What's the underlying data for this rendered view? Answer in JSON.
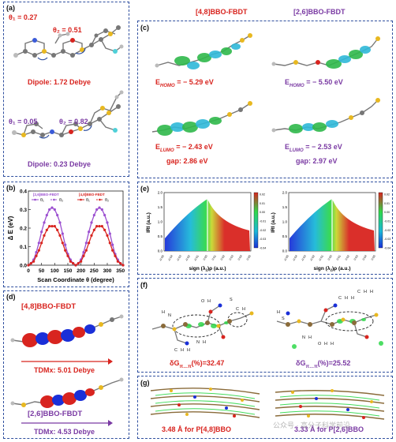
{
  "panel_a": {
    "label": "(a)",
    "top": {
      "theta1": "θ₁ = 0.27",
      "theta2": "θ₂ = 0.51",
      "dipole": "Dipole: 1.72 Debye"
    },
    "bottom": {
      "theta1": "θ₁ = 0.05",
      "theta2": "θ₂ = 0.82",
      "dipole": "Dipole: 0.23 Debye"
    }
  },
  "header": {
    "left": "[4,8]BBO-FBDT",
    "right": "[2,6]BBO-FBDT"
  },
  "panel_c": {
    "label": "(c)",
    "homo_left": "E",
    "homo_left_sub": "HOMO",
    "homo_left_val": "= − 5.29 eV",
    "homo_right": "E",
    "homo_right_sub": "HOMO",
    "homo_right_val": "= − 5.50 eV",
    "lumo_left": "E",
    "lumo_left_sub": "LUMO",
    "lumo_left_val": "= − 2.43 eV",
    "lumo_right": "E",
    "lumo_right_sub": "LUMO",
    "lumo_right_val": "= − 2.53 eV",
    "gap_left": "gap: 2.86 eV",
    "gap_right": "gap: 2.97 eV"
  },
  "panel_b": {
    "label": "(b)"
  },
  "chart_data": {
    "type": "line",
    "xlabel": "Scan Coordinate θ (degree)",
    "ylabel": "Δ E (eV)",
    "xlim": [
      0,
      360
    ],
    "ylim": [
      0.0,
      0.4
    ],
    "xticks": [
      "0",
      "50",
      "100",
      "150",
      "200",
      "250",
      "300",
      "350"
    ],
    "yticks": [
      "0.0",
      "0.1",
      "0.2",
      "0.3",
      "0.4"
    ],
    "legend_groups": [
      {
        "title": "[2,6]BBO-FBDT",
        "entries": [
          "θ₁",
          "θ₂"
        ],
        "color": "#9b4fd0"
      },
      {
        "title": "[4,8]BBO-FBDT",
        "entries": [
          "θ₁",
          "θ₂"
        ],
        "color": "#d8241f"
      }
    ],
    "series": [
      {
        "color": "#9b4fd0",
        "x": [
          0,
          10,
          20,
          30,
          40,
          50,
          60,
          70,
          80,
          90,
          100,
          110,
          120,
          130,
          140,
          150,
          160,
          170,
          180,
          190,
          200,
          210,
          220,
          230,
          240,
          250,
          260,
          270,
          280,
          290,
          300,
          310,
          320,
          330,
          340,
          350,
          360
        ],
        "y": [
          0.0,
          0.01,
          0.03,
          0.07,
          0.12,
          0.18,
          0.23,
          0.27,
          0.3,
          0.31,
          0.3,
          0.27,
          0.23,
          0.17,
          0.11,
          0.06,
          0.03,
          0.01,
          0.0,
          0.01,
          0.03,
          0.07,
          0.12,
          0.18,
          0.23,
          0.27,
          0.3,
          0.31,
          0.3,
          0.27,
          0.23,
          0.17,
          0.11,
          0.06,
          0.03,
          0.01,
          0.0
        ]
      },
      {
        "color": "#d8241f",
        "x": [
          0,
          10,
          20,
          30,
          40,
          50,
          60,
          70,
          80,
          90,
          100,
          110,
          120,
          130,
          140,
          150,
          160,
          170,
          180,
          190,
          200,
          210,
          220,
          230,
          240,
          250,
          260,
          270,
          280,
          290,
          300,
          310,
          320,
          330,
          340,
          350,
          360
        ],
        "y": [
          0.0,
          0.01,
          0.02,
          0.05,
          0.08,
          0.12,
          0.16,
          0.19,
          0.21,
          0.21,
          0.21,
          0.19,
          0.16,
          0.12,
          0.08,
          0.05,
          0.02,
          0.01,
          0.0,
          0.01,
          0.02,
          0.05,
          0.08,
          0.12,
          0.16,
          0.19,
          0.21,
          0.21,
          0.21,
          0.19,
          0.16,
          0.12,
          0.08,
          0.05,
          0.02,
          0.01,
          0.0
        ]
      }
    ]
  },
  "panel_e": {
    "label": "(e)",
    "ylabel": "IRI (a.u.)",
    "xlabel_pre": "sign (λ",
    "xlabel_sub": "2",
    "xlabel_post": ")ρ (a.u.)",
    "xticks": [
      "-0.05",
      "-0.04",
      "-0.03",
      "-0.02",
      "-0.01",
      "0.00",
      "0.01",
      "0.02",
      "0.03",
      "0.04",
      "0.05"
    ],
    "yticks": [
      "0.0",
      "0.5",
      "1.0",
      "1.5",
      "2.0"
    ],
    "colorbar": [
      "0.02",
      "0.01",
      "0.00",
      "-0.01",
      "-0.02",
      "-0.03",
      "-0.04"
    ]
  },
  "panel_d": {
    "label": "(d)",
    "top_title": "[4,8]BBO-FBDT",
    "top_tdm": "TDMx: 5.01 Debye",
    "bottom_title": "[2,6]BBO-FBDT",
    "bottom_tdm": "TDMx: 4.53 Debye"
  },
  "panel_f": {
    "label": "(f)",
    "left_val": "δG",
    "left_sub": "π…π",
    "left_rest": "(%)=32.47",
    "right_val": "δG",
    "right_sub": "π…π",
    "right_rest": "(%)=25.52",
    "atoms": [
      "O",
      "H",
      "N",
      "H",
      "S",
      "C",
      "H",
      "C",
      "H",
      "H",
      "N",
      "H",
      "C",
      "H",
      "H",
      "C",
      "H",
      "H",
      "H",
      "S",
      "N",
      "H",
      "O",
      "H",
      "H"
    ]
  },
  "panel_g": {
    "label": "(g)",
    "left": "3.48 Å for P[4,8]BBO",
    "right": "3.33 Å for P[2,6]BBO"
  },
  "watermark": "公众号 · 高分子科学前沿"
}
